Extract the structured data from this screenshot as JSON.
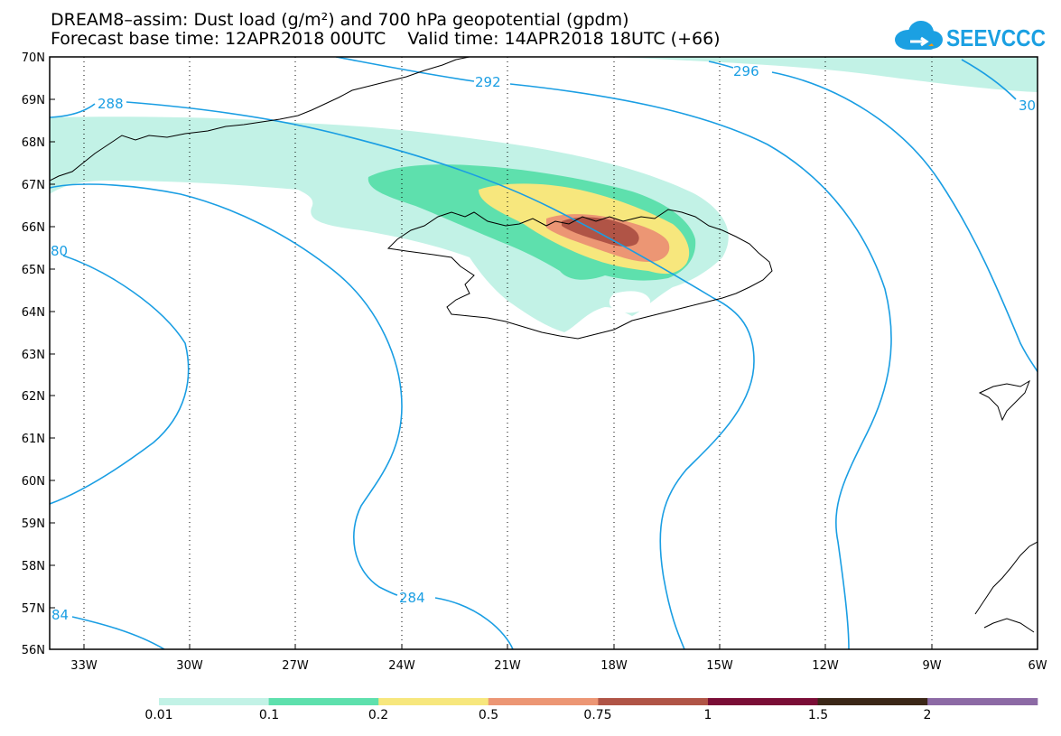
{
  "title": {
    "line1": "DREAM8–assim: Dust load (g/m²) and 700 hPa geopotential (gpdm)",
    "line2": "Forecast base time: 12APR2018 00UTC    Valid time: 14APR2018 18UTC (+66)"
  },
  "logo": {
    "text": "SEEVCCC",
    "color": "#1ba0e2"
  },
  "axes": {
    "lat_labels": [
      "70N",
      "69N",
      "68N",
      "67N",
      "66N",
      "65N",
      "64N",
      "63N",
      "62N",
      "61N",
      "60N",
      "59N",
      "58N",
      "57N",
      "56N"
    ],
    "lon_labels": [
      "33W",
      "30W",
      "27W",
      "24W",
      "21W",
      "18W",
      "15W",
      "12W",
      "9W",
      "6W"
    ]
  },
  "contour_labels": [
    "288",
    "292",
    "296",
    "30",
    "80",
    "284",
    "84"
  ],
  "colorbar": {
    "labels": [
      "0.01",
      "0.1",
      "0.2",
      "0.5",
      "0.75",
      "1",
      "1.5",
      "2"
    ],
    "colors": [
      "#c2f2e6",
      "#5ee0ad",
      "#f7e77d",
      "#ec9674",
      "#b05446",
      "#7a0d36",
      "#3b2717",
      "#8c6aa5"
    ]
  },
  "colors": {
    "contour": "#1a9ee3",
    "coast": "#000000"
  }
}
